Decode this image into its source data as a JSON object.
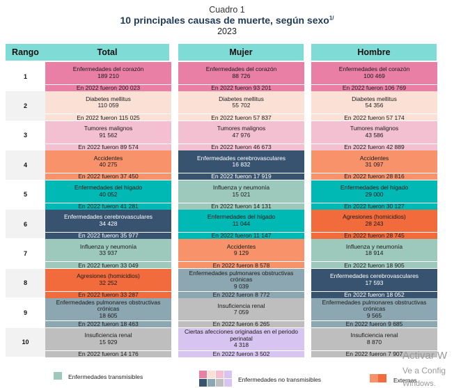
{
  "header": {
    "label": "Cuadro 1",
    "title": "10 principales causas de muerte, según sexo",
    "title_note": "1/",
    "year": "2023"
  },
  "columns": [
    "Rango",
    "Total",
    "Mujer",
    "Hombre"
  ],
  "palette": {
    "heart": "#e97fa5",
    "diabetes": "#fbe0d5",
    "tumors": "#f2c0d1",
    "accidents": "#f7926b",
    "liver": "#00b8b4",
    "cerebro": "#38536f",
    "influenza": "#9dc8bc",
    "aggression": "#f26b3d",
    "epoc": "#8ca7b1",
    "renal": "#bebebe",
    "perinatal": "#d8c4f0",
    "header": "#7fdbd5"
  },
  "rows": [
    {
      "rank": "1",
      "total": {
        "cause": "Enfermedades del corazón",
        "value": "189 210",
        "prev": "En 2022 fueron 200 023",
        "theme": "heart"
      },
      "mujer": {
        "cause": "Enfermedades del corazón",
        "value": "88 726",
        "prev": "En 2022 fueron 93 201",
        "theme": "heart"
      },
      "hombre": {
        "cause": "Enfermedades del corazón",
        "value": "100 469",
        "prev": "En 2022 fueron 106 769",
        "theme": "heart"
      }
    },
    {
      "rank": "2",
      "total": {
        "cause": "Diabetes mellitus",
        "value": "110 059",
        "prev": "En 2022 fueron 115 025",
        "theme": "diabetes"
      },
      "mujer": {
        "cause": "Diabetes mellitus",
        "value": "55 702",
        "prev": "En 2022 fueron 57 837",
        "theme": "diabetes"
      },
      "hombre": {
        "cause": "Diabetes mellitus",
        "value": "54 356",
        "prev": "En 2022 fueron 57 174",
        "theme": "diabetes"
      }
    },
    {
      "rank": "3",
      "total": {
        "cause": "Tumores malignos",
        "value": "91 562",
        "prev": "En 2022 fueron 89 574",
        "theme": "tumors"
      },
      "mujer": {
        "cause": "Tumores malignos",
        "value": "47 976",
        "prev": "En 2022 fueron 46 673",
        "theme": "tumors"
      },
      "hombre": {
        "cause": "Tumores malignos",
        "value": "43 586",
        "prev": "En 2022 fueron 42 889",
        "theme": "tumors"
      }
    },
    {
      "rank": "4",
      "total": {
        "cause": "Accidentes",
        "value": "40 275",
        "prev": "En 2022 fueron 37 450",
        "theme": "accidents"
      },
      "mujer": {
        "cause": "Enfermedades cerebrovasculares",
        "value": "16 832",
        "prev": "En 2022 fueron 17 919",
        "theme": "cerebro"
      },
      "hombre": {
        "cause": "Accidentes",
        "value": "31 097",
        "prev": "En 2022 fueron 28 816",
        "theme": "accidents"
      }
    },
    {
      "rank": "5",
      "total": {
        "cause": "Enfermedades del hígado",
        "value": "40 052",
        "prev": "En 2022 fueron 41 281",
        "theme": "liver"
      },
      "mujer": {
        "cause": "Influenza y neumonía",
        "value": "15 021",
        "prev": "En 2022 fueron 14 131",
        "theme": "influenza"
      },
      "hombre": {
        "cause": "Enfermedades del hígado",
        "value": "29 000",
        "prev": "En 2022 fueron 30 127",
        "theme": "liver"
      }
    },
    {
      "rank": "6",
      "total": {
        "cause": "Enfermedades cerebrovasculares",
        "value": "34 428",
        "prev": "En 2022 fueron 35 977",
        "theme": "cerebro"
      },
      "mujer": {
        "cause": "Enfermedades del hígado",
        "value": "11 044",
        "prev": "En 2022 fueron 11 147",
        "theme": "liver"
      },
      "hombre": {
        "cause": "Agresiones (homicidios)",
        "value": "28 243",
        "prev": "En 2022 fueron 28 745",
        "theme": "aggression"
      }
    },
    {
      "rank": "7",
      "total": {
        "cause": "Influenza y neumonía",
        "value": "33 937",
        "prev": "En 2022 fueron 33 049",
        "theme": "influenza"
      },
      "mujer": {
        "cause": "Accidentes",
        "value": "9 129",
        "prev": "En 2022 fueron 8 578",
        "theme": "accidents"
      },
      "hombre": {
        "cause": "Influenza y neumonía",
        "value": "18 914",
        "prev": "En 2022 fueron 18 905",
        "theme": "influenza"
      }
    },
    {
      "rank": "8",
      "total": {
        "cause": "Agresiones (homicidios)",
        "value": "32 252",
        "prev": "En 2022 fueron 33 287",
        "theme": "aggression"
      },
      "mujer": {
        "cause": "Enfermedades pulmonares obstructivas crónicas",
        "value": "9 039",
        "prev": "En 2022 fueron 8 772",
        "theme": "epoc"
      },
      "hombre": {
        "cause": "Enfermedades cerebrovasculares",
        "value": "17 593",
        "prev": "En 2022 fueron 18 052",
        "theme": "cerebro"
      }
    },
    {
      "rank": "9",
      "total": {
        "cause": "Enfermedades pulmonares obstructivas crónicas",
        "value": "18 605",
        "prev": "En 2022 fueron 18 463",
        "theme": "epoc"
      },
      "mujer": {
        "cause": "Insuficiencia renal",
        "value": "7 059",
        "prev": "En 2022 fueron 6 265",
        "theme": "renal"
      },
      "hombre": {
        "cause": "Enfermedades pulmonares obstructivas crónicas",
        "value": "9 565",
        "prev": "En 2022 fueron 9 685",
        "theme": "epoc"
      }
    },
    {
      "rank": "10",
      "total": {
        "cause": "Insuficiencia renal",
        "value": "15 929",
        "prev": "En 2022 fueron 14 176",
        "theme": "renal"
      },
      "mujer": {
        "cause": "Ciertas afecciones originadas en el periodo perinatal",
        "value": "4 318",
        "prev": "En 2022 fueron 3 502",
        "theme": "perinatal"
      },
      "hombre": {
        "cause": "Insuficiencia renal",
        "value": "8 870",
        "prev": "En 2022 fueron 7 907",
        "theme": "renal"
      }
    }
  ],
  "legend": {
    "transmissible": "Enfermedades transmisibles",
    "non_transmissible": "Enfermedades no transmisibles",
    "external": "Externas",
    "transmissible_color": "#9dc8bc",
    "non_transmissible_colors": [
      "#e97fa5",
      "#fbe0d5",
      "#f2c0d1",
      "#d8c4f0",
      "#38536f",
      "#8ca7b1",
      "#bebebe",
      "#d8c4f0"
    ],
    "external_colors": [
      "#f7926b",
      "#f26b3d"
    ]
  },
  "watermark": {
    "line1": "Activar W",
    "line2": "Ve a Config",
    "line3": "Windows."
  }
}
